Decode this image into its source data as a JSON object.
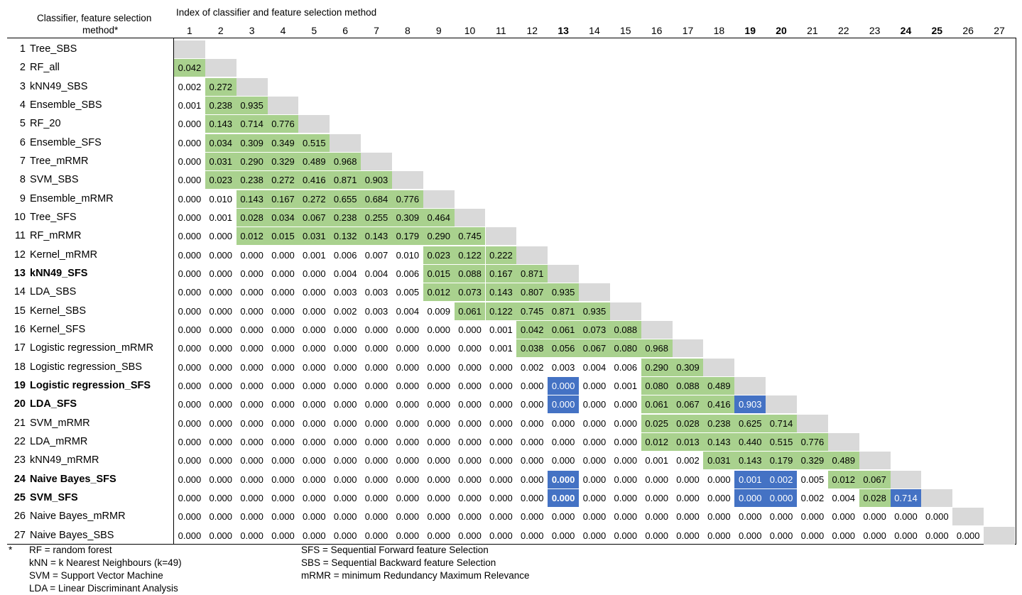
{
  "header": {
    "first_col_line1": "Classifier, feature selection",
    "first_col_line2": "method*",
    "matrix_title": "Index of classifier and feature selection method",
    "col_indices": [
      "1",
      "2",
      "3",
      "4",
      "5",
      "6",
      "7",
      "8",
      "9",
      "10",
      "11",
      "12",
      "13",
      "14",
      "15",
      "16",
      "17",
      "18",
      "19",
      "20",
      "21",
      "22",
      "23",
      "24",
      "25",
      "26",
      "27"
    ],
    "bold_cols": [
      13,
      19,
      20,
      24,
      25
    ]
  },
  "rows": [
    {
      "idx": "1",
      "name": "Tree_SBS",
      "bold": false,
      "values": [],
      "colors": ""
    },
    {
      "idx": "2",
      "name": "RF_all",
      "bold": false,
      "values": [
        "0.042"
      ],
      "colors": "g"
    },
    {
      "idx": "3",
      "name": "kNN49_SBS",
      "bold": false,
      "values": [
        "0.002",
        "0.272"
      ],
      "colors": "wg"
    },
    {
      "idx": "4",
      "name": "Ensemble_SBS",
      "bold": false,
      "values": [
        "0.001",
        "0.238",
        "0.935"
      ],
      "colors": "wgg"
    },
    {
      "idx": "5",
      "name": "RF_20",
      "bold": false,
      "values": [
        "0.000",
        "0.143",
        "0.714",
        "0.776"
      ],
      "colors": "wggg"
    },
    {
      "idx": "6",
      "name": "Ensemble_SFS",
      "bold": false,
      "values": [
        "0.000",
        "0.034",
        "0.309",
        "0.349",
        "0.515"
      ],
      "colors": "wgggg"
    },
    {
      "idx": "7",
      "name": "Tree_mRMR",
      "bold": false,
      "values": [
        "0.000",
        "0.031",
        "0.290",
        "0.329",
        "0.489",
        "0.968"
      ],
      "colors": "wggggg"
    },
    {
      "idx": "8",
      "name": "SVM_SBS",
      "bold": false,
      "values": [
        "0.000",
        "0.023",
        "0.238",
        "0.272",
        "0.416",
        "0.871",
        "0.903"
      ],
      "colors": "wgggggg"
    },
    {
      "idx": "9",
      "name": "Ensemble_mRMR",
      "bold": false,
      "values": [
        "0.000",
        "0.010",
        "0.143",
        "0.167",
        "0.272",
        "0.655",
        "0.684",
        "0.776"
      ],
      "colors": "wwgggggg"
    },
    {
      "idx": "10",
      "name": "Tree_SFS",
      "bold": false,
      "values": [
        "0.000",
        "0.001",
        "0.028",
        "0.034",
        "0.067",
        "0.238",
        "0.255",
        "0.309",
        "0.464"
      ],
      "colors": "wwggggggg"
    },
    {
      "idx": "11",
      "name": "RF_mRMR",
      "bold": false,
      "values": [
        "0.000",
        "0.000",
        "0.012",
        "0.015",
        "0.031",
        "0.132",
        "0.143",
        "0.179",
        "0.290",
        "0.745"
      ],
      "colors": "wwgggggggg"
    },
    {
      "idx": "12",
      "name": "Kernel_mRMR",
      "bold": false,
      "values": [
        "0.000",
        "0.000",
        "0.000",
        "0.000",
        "0.001",
        "0.006",
        "0.007",
        "0.010",
        "0.023",
        "0.122",
        "0.222"
      ],
      "colors": "wwwwwwwwggg"
    },
    {
      "idx": "13",
      "name": "kNN49_SFS",
      "bold": true,
      "values": [
        "0.000",
        "0.000",
        "0.000",
        "0.000",
        "0.000",
        "0.004",
        "0.004",
        "0.006",
        "0.015",
        "0.088",
        "0.167",
        "0.871"
      ],
      "colors": "wwwwwwwwgggg"
    },
    {
      "idx": "14",
      "name": "LDA_SBS",
      "bold": false,
      "values": [
        "0.000",
        "0.000",
        "0.000",
        "0.000",
        "0.000",
        "0.003",
        "0.003",
        "0.005",
        "0.012",
        "0.073",
        "0.143",
        "0.807",
        "0.935"
      ],
      "colors": "wwwwwwwwggggg"
    },
    {
      "idx": "15",
      "name": "Kernel_SBS",
      "bold": false,
      "values": [
        "0.000",
        "0.000",
        "0.000",
        "0.000",
        "0.000",
        "0.002",
        "0.003",
        "0.004",
        "0.009",
        "0.061",
        "0.122",
        "0.745",
        "0.871",
        "0.935"
      ],
      "colors": "wwwwwwwwwggggg"
    },
    {
      "idx": "16",
      "name": "Kernel_SFS",
      "bold": false,
      "values": [
        "0.000",
        "0.000",
        "0.000",
        "0.000",
        "0.000",
        "0.000",
        "0.000",
        "0.000",
        "0.000",
        "0.000",
        "0.001",
        "0.042",
        "0.061",
        "0.073",
        "0.088"
      ],
      "colors": "wwwwwwwwwwwgggg"
    },
    {
      "idx": "17",
      "name": "Logistic regression_mRMR",
      "bold": false,
      "values": [
        "0.000",
        "0.000",
        "0.000",
        "0.000",
        "0.000",
        "0.000",
        "0.000",
        "0.000",
        "0.000",
        "0.000",
        "0.001",
        "0.038",
        "0.056",
        "0.067",
        "0.080",
        "0.968"
      ],
      "colors": "wwwwwwwwwwwggggg"
    },
    {
      "idx": "18",
      "name": "Logistic regression_SBS",
      "bold": false,
      "values": [
        "0.000",
        "0.000",
        "0.000",
        "0.000",
        "0.000",
        "0.000",
        "0.000",
        "0.000",
        "0.000",
        "0.000",
        "0.000",
        "0.002",
        "0.003",
        "0.004",
        "0.006",
        "0.290",
        "0.309"
      ],
      "colors": "wwwwwwwwwwwwwwwgg"
    },
    {
      "idx": "19",
      "name": "Logistic regression_SFS",
      "bold": true,
      "values": [
        "0.000",
        "0.000",
        "0.000",
        "0.000",
        "0.000",
        "0.000",
        "0.000",
        "0.000",
        "0.000",
        "0.000",
        "0.000",
        "0.000",
        "0.000",
        "0.000",
        "0.001",
        "0.080",
        "0.088",
        "0.489"
      ],
      "colors": "wwwwwwwwwwwwbwwggg"
    },
    {
      "idx": "20",
      "name": "LDA_SFS",
      "bold": true,
      "values": [
        "0.000",
        "0.000",
        "0.000",
        "0.000",
        "0.000",
        "0.000",
        "0.000",
        "0.000",
        "0.000",
        "0.000",
        "0.000",
        "0.000",
        "0.000",
        "0.000",
        "0.000",
        "0.061",
        "0.067",
        "0.416",
        "0.903"
      ],
      "colors": "wwwwwwwwwwwwbwwgggb"
    },
    {
      "idx": "21",
      "name": "SVM_mRMR",
      "bold": false,
      "values": [
        "0.000",
        "0.000",
        "0.000",
        "0.000",
        "0.000",
        "0.000",
        "0.000",
        "0.000",
        "0.000",
        "0.000",
        "0.000",
        "0.000",
        "0.000",
        "0.000",
        "0.000",
        "0.025",
        "0.028",
        "0.238",
        "0.625",
        "0.714"
      ],
      "colors": "wwwwwwwwwwwwwwwggggg"
    },
    {
      "idx": "22",
      "name": "LDA_mRMR",
      "bold": false,
      "values": [
        "0.000",
        "0.000",
        "0.000",
        "0.000",
        "0.000",
        "0.000",
        "0.000",
        "0.000",
        "0.000",
        "0.000",
        "0.000",
        "0.000",
        "0.000",
        "0.000",
        "0.000",
        "0.012",
        "0.013",
        "0.143",
        "0.440",
        "0.515",
        "0.776"
      ],
      "colors": "wwwwwwwwwwwwwwwgggggg"
    },
    {
      "idx": "23",
      "name": "kNN49_mRMR",
      "bold": false,
      "values": [
        "0.000",
        "0.000",
        "0.000",
        "0.000",
        "0.000",
        "0.000",
        "0.000",
        "0.000",
        "0.000",
        "0.000",
        "0.000",
        "0.000",
        "0.000",
        "0.000",
        "0.000",
        "0.001",
        "0.002",
        "0.031",
        "0.143",
        "0.179",
        "0.329",
        "0.489"
      ],
      "colors": "wwwwwwwwwwwwwwwwwggggg"
    },
    {
      "idx": "24",
      "name": "Naive Bayes_SFS",
      "bold": true,
      "values": [
        "0.000",
        "0.000",
        "0.000",
        "0.000",
        "0.000",
        "0.000",
        "0.000",
        "0.000",
        "0.000",
        "0.000",
        "0.000",
        "0.000",
        "0.000",
        "0.000",
        "0.000",
        "0.000",
        "0.000",
        "0.000",
        "0.001",
        "0.002",
        "0.005",
        "0.012",
        "0.067"
      ],
      "colors": "wwwwwwwwwwwwBwwwwwbbwgg"
    },
    {
      "idx": "25",
      "name": "SVM_SFS",
      "bold": true,
      "values": [
        "0.000",
        "0.000",
        "0.000",
        "0.000",
        "0.000",
        "0.000",
        "0.000",
        "0.000",
        "0.000",
        "0.000",
        "0.000",
        "0.000",
        "0.000",
        "0.000",
        "0.000",
        "0.000",
        "0.000",
        "0.000",
        "0.000",
        "0.000",
        "0.002",
        "0.004",
        "0.028",
        "0.714"
      ],
      "colors": "wwwwwwwwwwwwBwwwwwbbwwgb"
    },
    {
      "idx": "26",
      "name": "Naive Bayes_mRMR",
      "bold": false,
      "values": [
        "0.000",
        "0.000",
        "0.000",
        "0.000",
        "0.000",
        "0.000",
        "0.000",
        "0.000",
        "0.000",
        "0.000",
        "0.000",
        "0.000",
        "0.000",
        "0.000",
        "0.000",
        "0.000",
        "0.000",
        "0.000",
        "0.000",
        "0.000",
        "0.000",
        "0.000",
        "0.000",
        "0.000",
        "0.000"
      ],
      "colors": "wwwwwwwwwwwwwwwwwwwwwwwww"
    },
    {
      "idx": "27",
      "name": "Naive Bayes_SBS",
      "bold": false,
      "values": [
        "0.000",
        "0.000",
        "0.000",
        "0.000",
        "0.000",
        "0.000",
        "0.000",
        "0.000",
        "0.000",
        "0.000",
        "0.000",
        "0.000",
        "0.000",
        "0.000",
        "0.000",
        "0.000",
        "0.000",
        "0.000",
        "0.000",
        "0.000",
        "0.000",
        "0.000",
        "0.000",
        "0.000",
        "0.000",
        "0.000"
      ],
      "colors": "wwwwwwwwwwwwwwwwwwwwwwwwww"
    }
  ],
  "colors": {
    "green": "#a9d18e",
    "blue": "#4472c4",
    "diagonal": "#d9d9d9"
  },
  "footnote": {
    "marker": "*",
    "left": [
      "RF = random forest",
      "kNN = k Nearest Neighbours (k=49)",
      "SVM = Support Vector Machine",
      "LDA = Linear Discriminant Analysis"
    ],
    "right": [
      "SFS = Sequential Forward feature Selection",
      "SBS = Sequential Backward feature Selection",
      "mRMR = minimum Redundancy Maximum Relevance"
    ]
  }
}
